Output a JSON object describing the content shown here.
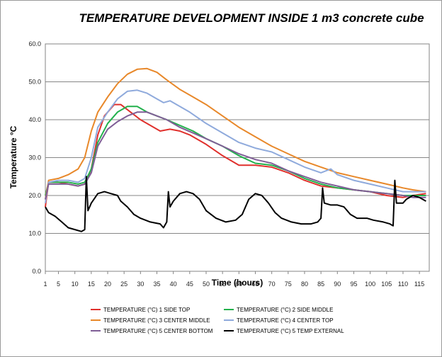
{
  "chart_data": {
    "type": "line",
    "title": "TEMPERATURE    DEVELOPMENT    INSIDE   1 m3 concrete cube",
    "xlabel": "Time (hours)",
    "ylabel": "Temperature °C",
    "ylim": [
      0,
      60
    ],
    "xlim": [
      1,
      118
    ],
    "x_ticks": [
      1,
      5,
      10,
      15,
      20,
      25,
      30,
      35,
      40,
      45,
      50,
      55,
      60,
      65,
      70,
      75,
      80,
      85,
      90,
      95,
      100,
      105,
      110,
      115
    ],
    "y_ticks": [
      "0.0",
      "10.0",
      "20.0",
      "30.0",
      "40.0",
      "50.0",
      "60.0"
    ],
    "grid": "horizontal",
    "legend_position": "bottom",
    "series": [
      {
        "name": "TEMPERATURE  (°C) 1 SIDE TOP",
        "color": "#e0302c",
        "points": [
          [
            1,
            17
          ],
          [
            2,
            23.5
          ],
          [
            5,
            23.5
          ],
          [
            8,
            23
          ],
          [
            11,
            22.5
          ],
          [
            13,
            23
          ],
          [
            15,
            27
          ],
          [
            17,
            36
          ],
          [
            19,
            41
          ],
          [
            22,
            44
          ],
          [
            24,
            44
          ],
          [
            27,
            42
          ],
          [
            30,
            40
          ],
          [
            33,
            38.5
          ],
          [
            36,
            37
          ],
          [
            39,
            37.5
          ],
          [
            42,
            37
          ],
          [
            45,
            36
          ],
          [
            50,
            33.5
          ],
          [
            55,
            30.5
          ],
          [
            60,
            28
          ],
          [
            65,
            28
          ],
          [
            70,
            27.5
          ],
          [
            75,
            26
          ],
          [
            80,
            24
          ],
          [
            85,
            22.5
          ],
          [
            90,
            22
          ],
          [
            95,
            21.5
          ],
          [
            100,
            21
          ],
          [
            105,
            20
          ],
          [
            110,
            19.5
          ],
          [
            113,
            20
          ],
          [
            117,
            20.5
          ]
        ]
      },
      {
        "name": "TEMPERATURE  (°C) 2  SIDE MIDDLE",
        "color": "#22b14c",
        "points": [
          [
            1,
            20
          ],
          [
            2,
            23.5
          ],
          [
            5,
            23.5
          ],
          [
            8,
            23.5
          ],
          [
            11,
            23
          ],
          [
            13,
            23.5
          ],
          [
            15,
            27
          ],
          [
            17,
            34
          ],
          [
            20,
            39
          ],
          [
            23,
            42
          ],
          [
            26,
            43.5
          ],
          [
            29,
            43.5
          ],
          [
            32,
            42
          ],
          [
            35,
            41
          ],
          [
            38,
            40
          ],
          [
            42,
            38.5
          ],
          [
            46,
            37
          ],
          [
            50,
            35
          ],
          [
            55,
            33
          ],
          [
            60,
            30.5
          ],
          [
            65,
            28.5
          ],
          [
            70,
            28
          ],
          [
            75,
            26.5
          ],
          [
            80,
            24.5
          ],
          [
            85,
            23
          ],
          [
            90,
            22
          ],
          [
            95,
            21.5
          ],
          [
            100,
            21
          ],
          [
            105,
            20.5
          ],
          [
            110,
            20
          ],
          [
            113,
            20
          ],
          [
            117,
            20
          ]
        ]
      },
      {
        "name": "TEMPERATURE  (°C) 3  CENTER  MIDDLE",
        "color": "#e8882a",
        "points": [
          [
            1,
            19
          ],
          [
            2,
            24
          ],
          [
            5,
            24.5
          ],
          [
            8,
            25.5
          ],
          [
            11,
            27
          ],
          [
            13,
            30
          ],
          [
            15,
            37
          ],
          [
            17,
            42
          ],
          [
            20,
            46
          ],
          [
            23,
            49.5
          ],
          [
            26,
            52
          ],
          [
            29,
            53.3
          ],
          [
            32,
            53.5
          ],
          [
            35,
            52.5
          ],
          [
            38,
            50.5
          ],
          [
            42,
            48
          ],
          [
            46,
            46
          ],
          [
            50,
            44
          ],
          [
            55,
            41
          ],
          [
            60,
            38
          ],
          [
            65,
            35.5
          ],
          [
            70,
            33
          ],
          [
            75,
            31
          ],
          [
            80,
            29
          ],
          [
            85,
            27.5
          ],
          [
            90,
            26
          ],
          [
            95,
            25
          ],
          [
            100,
            24
          ],
          [
            105,
            23
          ],
          [
            110,
            22
          ],
          [
            113,
            21.5
          ],
          [
            117,
            21
          ]
        ]
      },
      {
        "name": "TEMPERATURE  (°C) 4  CENTER  TOP",
        "color": "#8faadc",
        "points": [
          [
            1,
            18
          ],
          [
            2,
            23.5
          ],
          [
            5,
            24
          ],
          [
            8,
            24
          ],
          [
            11,
            23.5
          ],
          [
            13,
            24.5
          ],
          [
            15,
            30
          ],
          [
            17,
            38
          ],
          [
            20,
            42
          ],
          [
            23,
            45.5
          ],
          [
            26,
            47.5
          ],
          [
            29,
            47.8
          ],
          [
            32,
            47
          ],
          [
            35,
            45.5
          ],
          [
            37,
            44.5
          ],
          [
            39,
            45
          ],
          [
            41,
            44
          ],
          [
            45,
            42
          ],
          [
            50,
            39
          ],
          [
            55,
            36.5
          ],
          [
            60,
            34
          ],
          [
            65,
            32.5
          ],
          [
            70,
            31.5
          ],
          [
            75,
            29.5
          ],
          [
            80,
            27.5
          ],
          [
            85,
            26
          ],
          [
            88,
            27
          ],
          [
            90,
            25.5
          ],
          [
            95,
            24
          ],
          [
            100,
            23
          ],
          [
            105,
            22
          ],
          [
            110,
            21
          ],
          [
            113,
            21
          ],
          [
            117,
            21
          ]
        ]
      },
      {
        "name": "TEMPERATURE  (°C) 5  CENTER  BOTTOM",
        "color": "#7f5e96",
        "points": [
          [
            1,
            19
          ],
          [
            2,
            23
          ],
          [
            5,
            23
          ],
          [
            8,
            23
          ],
          [
            11,
            22.5
          ],
          [
            13,
            23
          ],
          [
            15,
            26
          ],
          [
            17,
            33
          ],
          [
            20,
            37.5
          ],
          [
            23,
            39.5
          ],
          [
            26,
            41
          ],
          [
            29,
            42
          ],
          [
            32,
            42
          ],
          [
            35,
            41
          ],
          [
            38,
            40
          ],
          [
            42,
            38
          ],
          [
            46,
            36.5
          ],
          [
            50,
            35
          ],
          [
            55,
            33
          ],
          [
            60,
            31
          ],
          [
            65,
            29.5
          ],
          [
            70,
            28.5
          ],
          [
            75,
            26.5
          ],
          [
            80,
            25
          ],
          [
            85,
            23.5
          ],
          [
            90,
            22.5
          ],
          [
            95,
            21.5
          ],
          [
            100,
            21
          ],
          [
            105,
            20.5
          ],
          [
            110,
            20
          ],
          [
            113,
            19.5
          ],
          [
            117,
            19.5
          ]
        ]
      },
      {
        "name": "TEMPERATURE  (°C) 5 TEMP EXTERNAL",
        "color": "#000000",
        "points": [
          [
            1,
            17
          ],
          [
            2,
            15.5
          ],
          [
            4,
            14.5
          ],
          [
            6,
            13
          ],
          [
            8,
            11.5
          ],
          [
            10,
            11
          ],
          [
            12,
            10.5
          ],
          [
            13,
            11
          ],
          [
            13.5,
            25
          ],
          [
            14,
            16
          ],
          [
            15,
            18
          ],
          [
            17,
            20.5
          ],
          [
            19,
            21
          ],
          [
            21,
            20.5
          ],
          [
            23,
            20
          ],
          [
            24,
            18.5
          ],
          [
            26,
            17
          ],
          [
            28,
            15
          ],
          [
            30,
            14
          ],
          [
            33,
            13
          ],
          [
            36,
            12.5
          ],
          [
            37,
            11.5
          ],
          [
            38,
            13
          ],
          [
            38.5,
            21
          ],
          [
            39,
            17
          ],
          [
            40,
            18.5
          ],
          [
            42,
            20.5
          ],
          [
            44,
            21
          ],
          [
            46,
            20.5
          ],
          [
            48,
            19
          ],
          [
            50,
            16
          ],
          [
            53,
            14
          ],
          [
            56,
            13
          ],
          [
            59,
            13.5
          ],
          [
            61,
            15
          ],
          [
            63,
            19
          ],
          [
            65,
            20.5
          ],
          [
            67,
            20
          ],
          [
            69,
            18
          ],
          [
            71,
            15.5
          ],
          [
            73,
            14
          ],
          [
            76,
            13
          ],
          [
            79,
            12.5
          ],
          [
            82,
            12.5
          ],
          [
            84,
            13
          ],
          [
            85,
            14
          ],
          [
            85.5,
            22
          ],
          [
            86,
            18
          ],
          [
            88,
            17.5
          ],
          [
            90,
            17.5
          ],
          [
            92,
            17
          ],
          [
            94,
            15
          ],
          [
            96,
            14
          ],
          [
            99,
            14
          ],
          [
            101,
            13.5
          ],
          [
            104,
            13
          ],
          [
            106,
            12.5
          ],
          [
            107,
            12
          ],
          [
            107.5,
            24
          ],
          [
            108,
            18
          ],
          [
            110,
            18
          ],
          [
            111,
            19
          ],
          [
            113,
            20
          ],
          [
            115,
            19.5
          ],
          [
            117,
            18.5
          ]
        ]
      }
    ]
  }
}
